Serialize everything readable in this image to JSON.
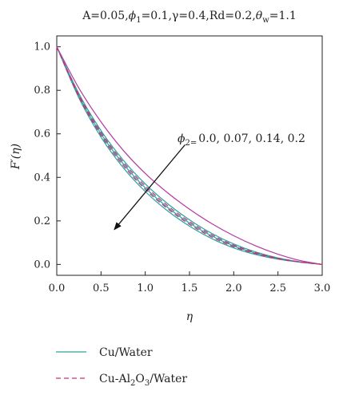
{
  "chart_data": {
    "type": "line",
    "title": "A=0.05,ϕ1=0.1,γ=0.4,Rd=0.2,θw=1.1",
    "title_parts": {
      "a": "A=0.05,",
      "phi": "ϕ",
      "phi_sub": "1",
      "mid": "=0.1,γ=0.4,Rd=0.2,",
      "theta": "θ",
      "theta_sub": "w",
      "end": "=1.1"
    },
    "xlabel": "η",
    "ylabel": "F′(η)",
    "xlim": [
      0,
      3
    ],
    "ylim": [
      -0.05,
      1.05
    ],
    "xticks": [
      "0.0",
      "0.5",
      "1.0",
      "1.5",
      "2.0",
      "2.5",
      "3.0"
    ],
    "yticks": [
      "0.0",
      "0.2",
      "0.4",
      "0.6",
      "0.8",
      "1.0"
    ],
    "grid": false,
    "legend_position": "bottom-left",
    "annotation": {
      "phi": "ϕ",
      "sub": "2=",
      "values": "0.0, 0.07, 0.14, 0.2",
      "arrow_from": [
        1.45,
        0.55
      ],
      "arrow_to": [
        0.65,
        0.16
      ]
    },
    "x": [
      0.0,
      0.25,
      0.5,
      0.75,
      1.0,
      1.25,
      1.5,
      1.75,
      2.0,
      2.25,
      2.5,
      2.75,
      3.0
    ],
    "series": [
      {
        "name": "Cu/Water",
        "phi2": "0.0",
        "style": "solid",
        "color": "#2aa39b",
        "values": [
          1.0,
          0.765,
          0.585,
          0.445,
          0.335,
          0.247,
          0.176,
          0.119,
          0.076,
          0.045,
          0.024,
          0.01,
          0.0
        ]
      },
      {
        "name": "Cu/Water",
        "phi2": "0.07",
        "style": "solid",
        "color": "#2aa39b",
        "values": [
          1.0,
          0.775,
          0.6,
          0.463,
          0.352,
          0.263,
          0.19,
          0.131,
          0.085,
          0.051,
          0.027,
          0.011,
          0.0
        ]
      },
      {
        "name": "Cu/Water",
        "phi2": "0.14",
        "style": "solid",
        "color": "#2aa39b",
        "values": [
          1.0,
          0.785,
          0.615,
          0.48,
          0.37,
          0.28,
          0.205,
          0.143,
          0.094,
          0.057,
          0.03,
          0.012,
          0.0
        ]
      },
      {
        "name": "Cu/Water",
        "phi2": "0.2",
        "style": "solid",
        "color": "#b23aa5",
        "values": [
          1.0,
          0.81,
          0.655,
          0.525,
          0.418,
          0.33,
          0.254,
          0.188,
          0.132,
          0.085,
          0.047,
          0.018,
          0.0
        ]
      },
      {
        "name": "Cu-Al2O3/Water",
        "phi2": "0.0",
        "style": "dashed",
        "color": "#cc2f7e",
        "values": [
          1.0,
          0.77,
          0.593,
          0.455,
          0.345,
          0.257,
          0.184,
          0.126,
          0.081,
          0.049,
          0.026,
          0.011,
          0.0
        ]
      },
      {
        "name": "Cu-Al2O3/Water",
        "phi2": "0.07",
        "style": "dashed",
        "color": "#cc2f7e",
        "values": [
          1.0,
          0.78,
          0.607,
          0.471,
          0.361,
          0.271,
          0.197,
          0.137,
          0.089,
          0.054,
          0.029,
          0.012,
          0.0
        ]
      }
    ],
    "legend": [
      {
        "label": "Cu/Water",
        "style": "solid",
        "color": "#2aa39b"
      },
      {
        "label_main": "Cu-Al",
        "sub1": "2",
        "label_mid": "O",
        "sub2": "3",
        "label_end": "/Water",
        "style": "dashed",
        "color": "#cc2f7e"
      }
    ]
  }
}
